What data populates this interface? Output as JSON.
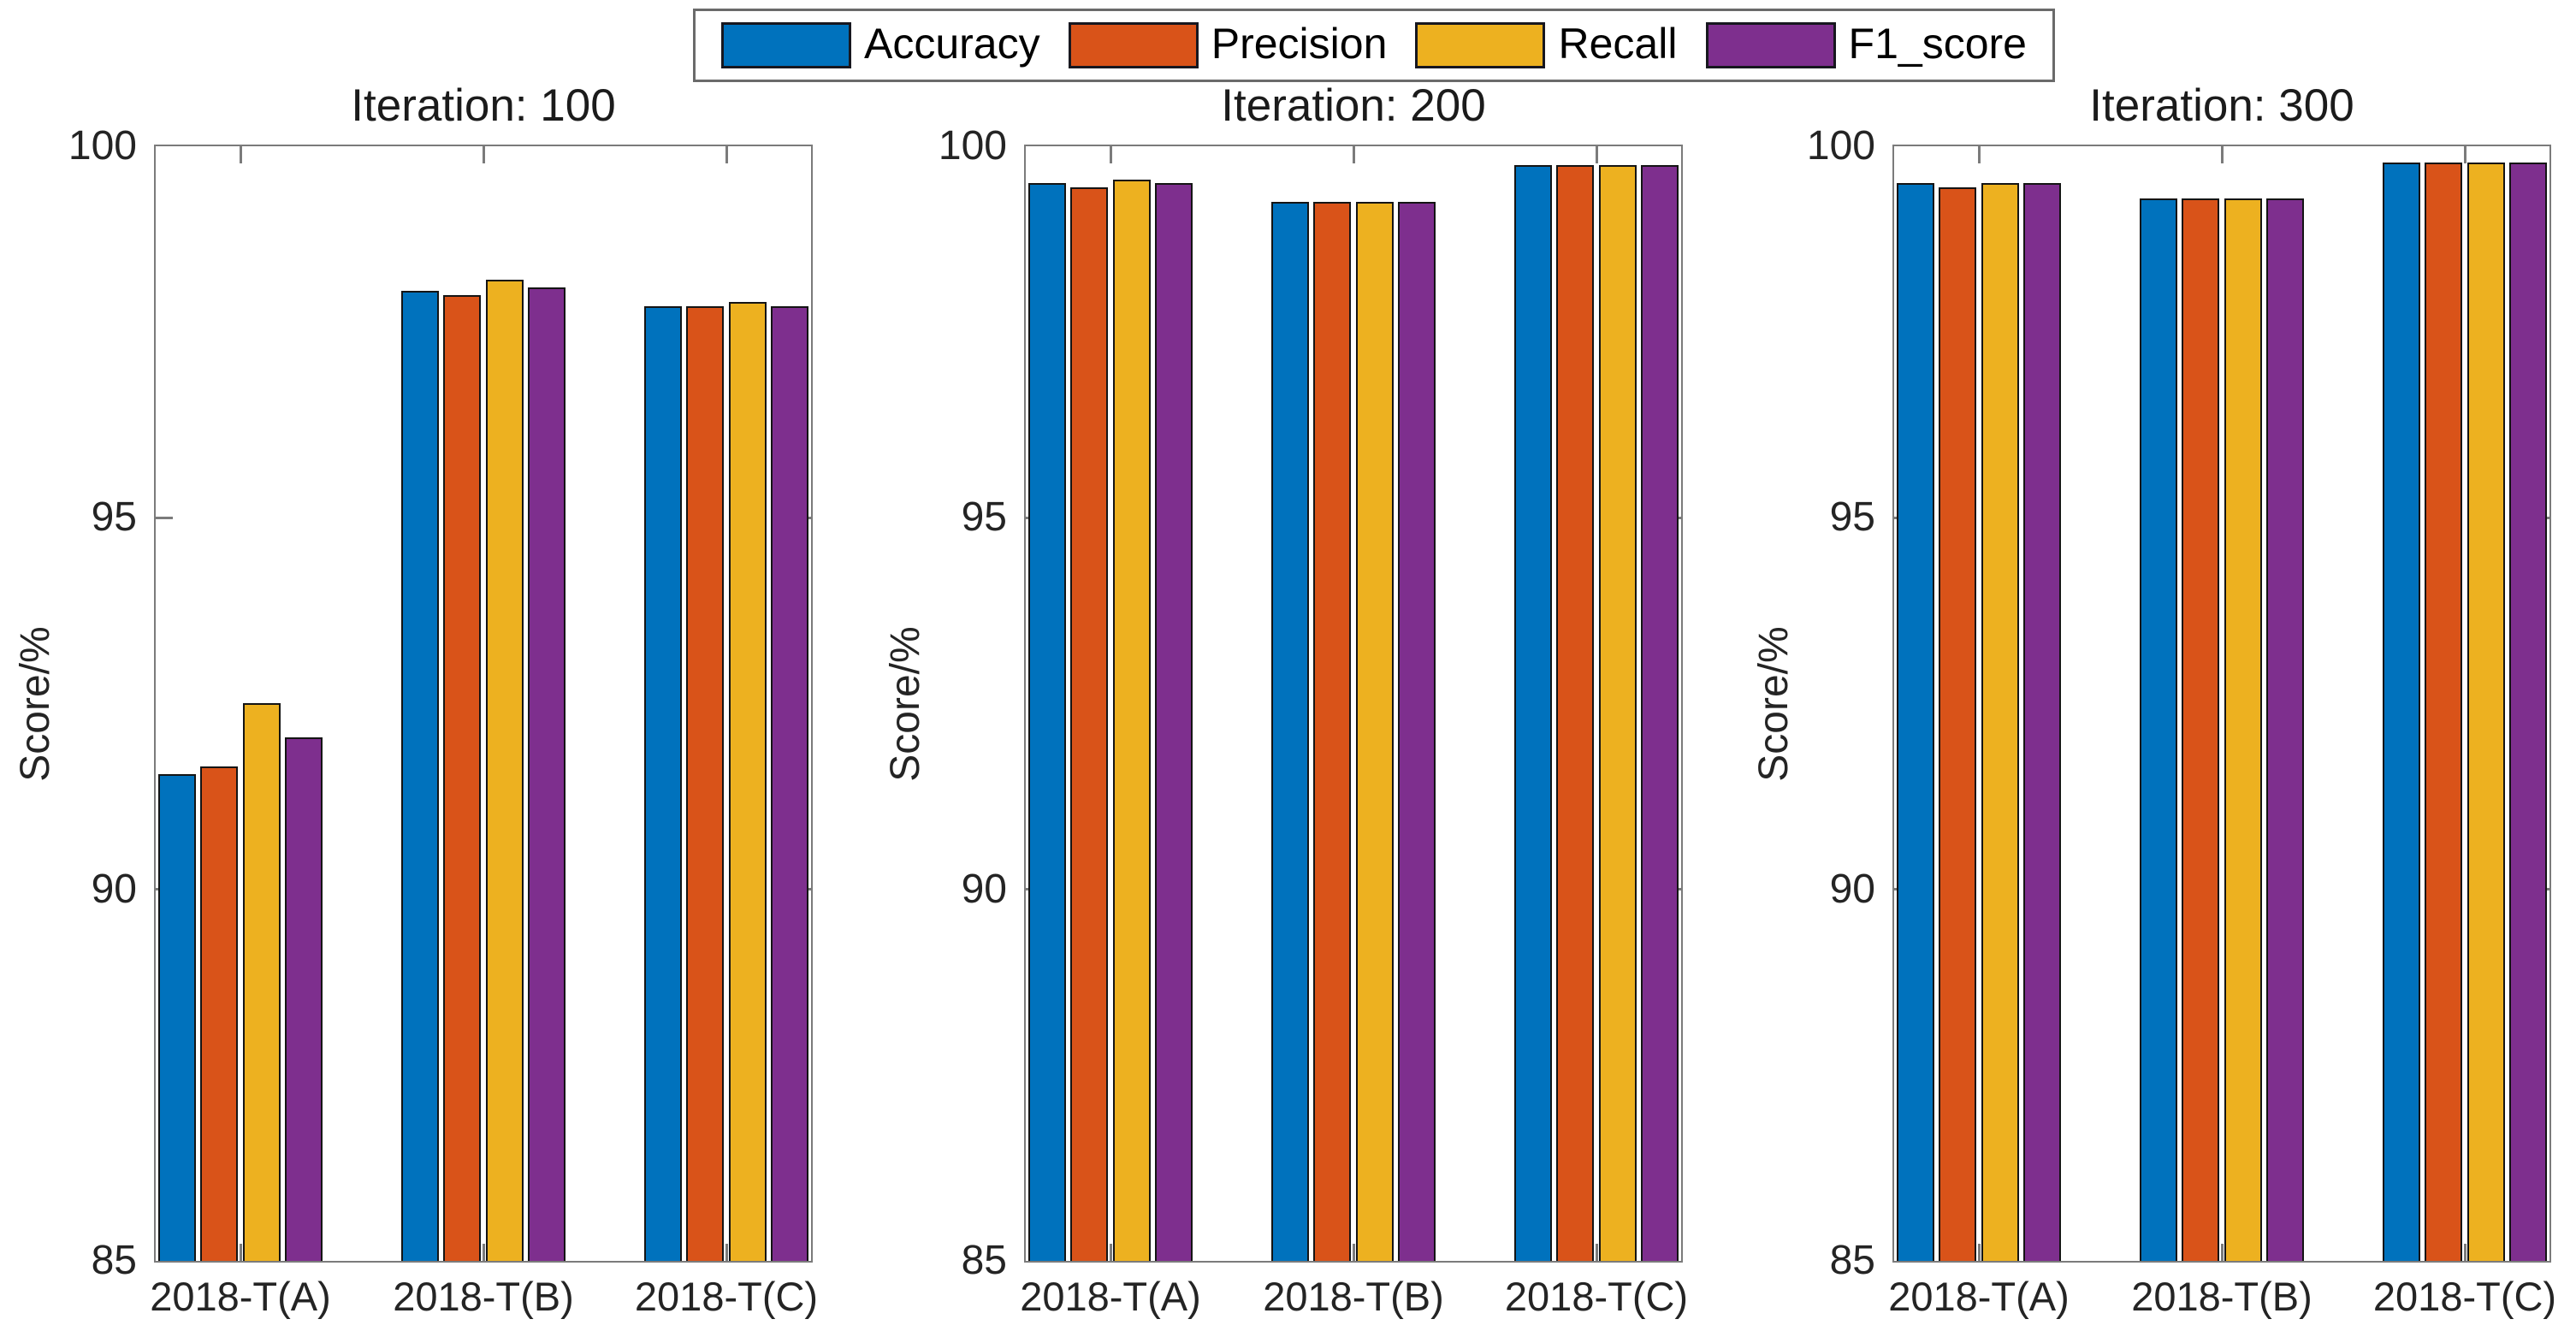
{
  "figure": {
    "background": "#ffffff",
    "legend": {
      "position": "top-center",
      "items": [
        {
          "label": "Accuracy",
          "color": "#0072BD"
        },
        {
          "label": "Precision",
          "color": "#D95319"
        },
        {
          "label": "Recall",
          "color": "#EDB120"
        },
        {
          "label": "F1_score",
          "color": "#7E2F8E"
        }
      ]
    }
  },
  "chart_data": [
    {
      "type": "bar",
      "title": "Iteration: 100",
      "xlabel": "",
      "ylabel": "Score/%",
      "ylim": [
        85,
        100
      ],
      "yticks": [
        100,
        95,
        90,
        85
      ],
      "grid": false,
      "categories": [
        "2018-T(A)",
        "2018-T(B)",
        "2018-T(C)"
      ],
      "series": [
        {
          "name": "Accuracy",
          "color": "#0072BD",
          "values": [
            91.55,
            98.05,
            97.85
          ]
        },
        {
          "name": "Precision",
          "color": "#D95319",
          "values": [
            91.65,
            98.0,
            97.85
          ]
        },
        {
          "name": "Recall",
          "color": "#EDB120",
          "values": [
            92.5,
            98.2,
            97.9
          ]
        },
        {
          "name": "F1_score",
          "color": "#7E2F8E",
          "values": [
            92.05,
            98.1,
            97.85
          ]
        }
      ]
    },
    {
      "type": "bar",
      "title": "Iteration: 200",
      "xlabel": "",
      "ylabel": "Score/%",
      "ylim": [
        85,
        100
      ],
      "yticks": [
        100,
        95,
        90,
        85
      ],
      "grid": false,
      "categories": [
        "2018-T(A)",
        "2018-T(B)",
        "2018-T(C)"
      ],
      "series": [
        {
          "name": "Accuracy",
          "color": "#0072BD",
          "values": [
            99.5,
            99.25,
            99.75
          ]
        },
        {
          "name": "Precision",
          "color": "#D95319",
          "values": [
            99.45,
            99.25,
            99.75
          ]
        },
        {
          "name": "Recall",
          "color": "#EDB120",
          "values": [
            99.55,
            99.25,
            99.75
          ]
        },
        {
          "name": "F1_score",
          "color": "#7E2F8E",
          "values": [
            99.5,
            99.25,
            99.75
          ]
        }
      ]
    },
    {
      "type": "bar",
      "title": "Iteration: 300",
      "xlabel": "",
      "ylabel": "Score/%",
      "ylim": [
        85,
        100
      ],
      "yticks": [
        100,
        95,
        90,
        85
      ],
      "grid": false,
      "categories": [
        "2018-T(A)",
        "2018-T(B)",
        "2018-T(C)"
      ],
      "series": [
        {
          "name": "Accuracy",
          "color": "#0072BD",
          "values": [
            99.5,
            99.3,
            99.78
          ]
        },
        {
          "name": "Precision",
          "color": "#D95319",
          "values": [
            99.45,
            99.3,
            99.78
          ]
        },
        {
          "name": "Recall",
          "color": "#EDB120",
          "values": [
            99.5,
            99.3,
            99.78
          ]
        },
        {
          "name": "F1_score",
          "color": "#7E2F8E",
          "values": [
            99.5,
            99.3,
            99.78
          ]
        }
      ]
    }
  ]
}
